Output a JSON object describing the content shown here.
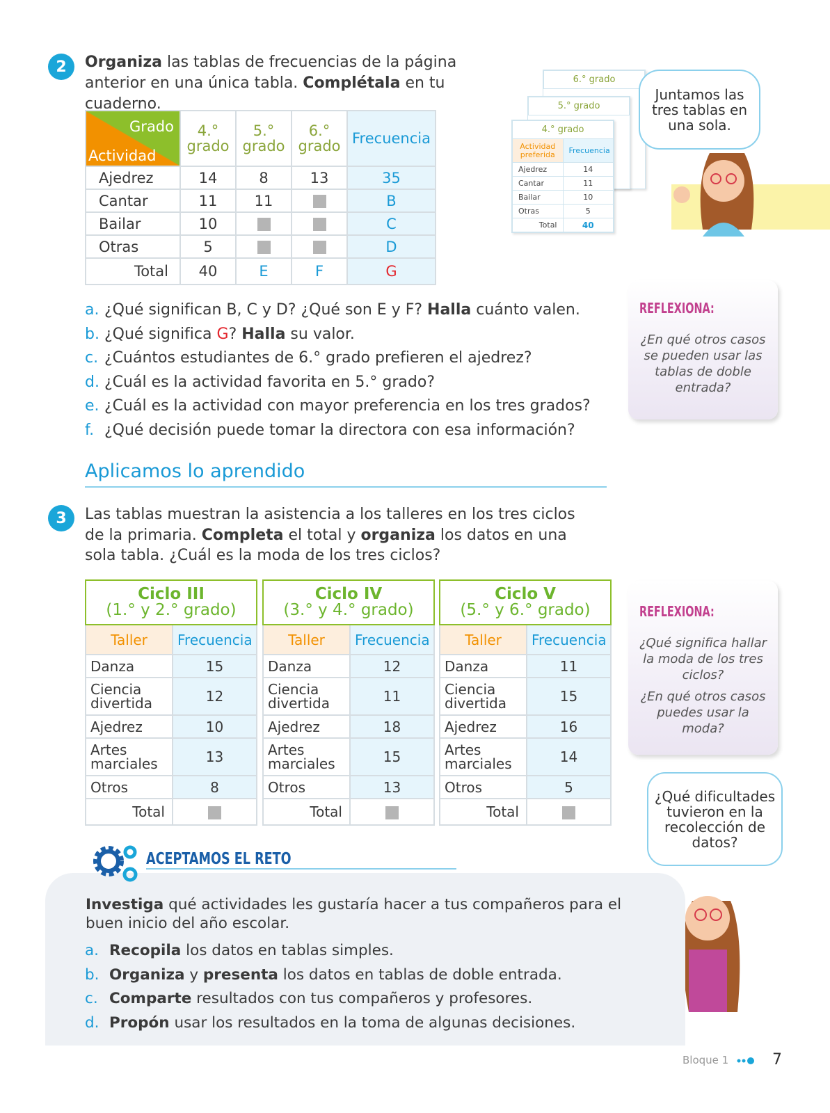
{
  "exercise2": {
    "number": "2",
    "text": [
      {
        "t": "Organiza",
        "b": true
      },
      {
        "t": " las tablas de frecuencias de la página anterior en una única tabla. "
      },
      {
        "t": "Complétala",
        "b": true
      },
      {
        "t": " en tu cuaderno."
      }
    ]
  },
  "table1": {
    "corner_top": "Grado",
    "corner_bottom": "Actividad",
    "columns": [
      "4.° grado",
      "5.° grado",
      "6.° grado",
      "Frecuencia"
    ],
    "rows": [
      [
        "Ajedrez",
        14,
        8,
        13,
        35
      ],
      [
        "Cantar",
        11,
        11,
        null,
        "B"
      ],
      [
        "Bailar",
        10,
        null,
        null,
        "C"
      ],
      [
        "Otras",
        5,
        null,
        null,
        "D"
      ]
    ],
    "total": [
      "Total",
      40,
      "E",
      "F",
      "G"
    ]
  },
  "merge_note": {
    "tables": [
      "6.° grado",
      "5.° grado",
      "4.° grado"
    ],
    "header": [
      "Actividad preferida",
      "Frecuencia"
    ],
    "rows": [
      [
        "Ajedrez",
        14
      ],
      [
        "Cantar",
        11
      ],
      [
        "Bailar",
        10
      ],
      [
        "Otras",
        5
      ]
    ],
    "total": [
      "Total",
      40
    ]
  },
  "bubble1": "Juntamos las tres tablas en una sola.",
  "questions": [
    {
      "letter": "a.",
      "text": [
        {
          "t": "¿Qué significan B, C y D? ¿Qué son E y F? "
        },
        {
          "t": "Halla",
          "b": true
        },
        {
          "t": " cuánto valen."
        }
      ]
    },
    {
      "letter": "b.",
      "text": [
        {
          "t": "¿Qué significa "
        },
        {
          "t": "G",
          "r": true
        },
        {
          "t": "? "
        },
        {
          "t": "Halla",
          "b": true
        },
        {
          "t": " su valor."
        }
      ]
    },
    {
      "letter": "c.",
      "text": [
        {
          "t": "¿Cuántos estudiantes de 6.° grado prefieren el ajedrez?"
        }
      ]
    },
    {
      "letter": "d.",
      "text": [
        {
          "t": "¿Cuál es la actividad favorita en 5.° grado?"
        }
      ]
    },
    {
      "letter": "e.",
      "text": [
        {
          "t": "¿Cuál es la actividad con mayor preferencia en los tres grados?"
        }
      ]
    },
    {
      "letter": "f.",
      "text": [
        {
          "t": "¿Qué decisión puede tomar la directora con esa información?"
        }
      ]
    }
  ],
  "reflect1": {
    "title": "REFLEXIONA:",
    "text": [
      "¿En qué otros casos se pueden usar las tablas de doble entrada?"
    ]
  },
  "section_title": "Aplicamos lo aprendido",
  "exercise3": {
    "number": "3",
    "text": [
      {
        "t": "Las tablas muestran la asistencia a los talleres en los tres ciclos de la primaria. "
      },
      {
        "t": "Completa",
        "b": true
      },
      {
        "t": " el total y "
      },
      {
        "t": "organiza",
        "b": true
      },
      {
        "t": " los datos en una sola tabla. ¿Cuál es la moda de los tres ciclos?"
      }
    ]
  },
  "cycles": [
    {
      "title": "Ciclo III",
      "subtitle": "(1.° y 2.° grado)",
      "header": [
        "Taller",
        "Frecuencia"
      ],
      "rows": [
        [
          "Danza",
          15
        ],
        [
          "Ciencia divertida",
          12
        ],
        [
          "Ajedrez",
          10
        ],
        [
          "Artes marciales",
          13
        ],
        [
          "Otros",
          8
        ]
      ],
      "total": [
        "Total",
        null
      ]
    },
    {
      "title": "Ciclo IV",
      "subtitle": "(3.° y 4.° grado)",
      "header": [
        "Taller",
        "Frecuencia"
      ],
      "rows": [
        [
          "Danza",
          12
        ],
        [
          "Ciencia divertida",
          11
        ],
        [
          "Ajedrez",
          18
        ],
        [
          "Artes marciales",
          15
        ],
        [
          "Otros",
          13
        ]
      ],
      "total": [
        "Total",
        null
      ]
    },
    {
      "title": "Ciclo V",
      "subtitle": "(5.° y 6.° grado)",
      "header": [
        "Taller",
        "Frecuencia"
      ],
      "rows": [
        [
          "Danza",
          11
        ],
        [
          "Ciencia divertida",
          15
        ],
        [
          "Ajedrez",
          16
        ],
        [
          "Artes marciales",
          14
        ],
        [
          "Otros",
          5
        ]
      ],
      "total": [
        "Total",
        null
      ]
    }
  ],
  "reflect2": {
    "title": "REFLEXIONA:",
    "text": [
      "¿Qué significa hallar la moda de los tres ciclos?",
      "¿En qué otros casos puedes usar la moda?"
    ]
  },
  "bubble2": "¿Qué dificultades tuvieron en la recolección de datos?",
  "challenge": {
    "title": "ACEPTAMOS EL RETO",
    "intro": [
      {
        "t": "Investiga",
        "b": true
      },
      {
        "t": " qué actividades les gustaría hacer a tus compañeros para el buen inicio del año escolar."
      }
    ],
    "items": [
      {
        "letter": "a.",
        "text": [
          {
            "t": "Recopila",
            "b": true
          },
          {
            "t": " los datos en tablas simples."
          }
        ]
      },
      {
        "letter": "b.",
        "text": [
          {
            "t": "Organiza",
            "b": true
          },
          {
            "t": " y "
          },
          {
            "t": "presenta",
            "b": true
          },
          {
            "t": " los datos en tablas de doble entrada."
          }
        ]
      },
      {
        "letter": "c.",
        "text": [
          {
            "t": "Comparte",
            "b": true
          },
          {
            "t": " resultados con tus compañeros y profesores."
          }
        ]
      },
      {
        "letter": "d.",
        "text": [
          {
            "t": "Propón",
            "b": true
          },
          {
            "t": " usar los resultados en la toma de algunas decisiones."
          }
        ]
      }
    ]
  },
  "footer": {
    "block": "Bloque 1",
    "page": "7"
  }
}
